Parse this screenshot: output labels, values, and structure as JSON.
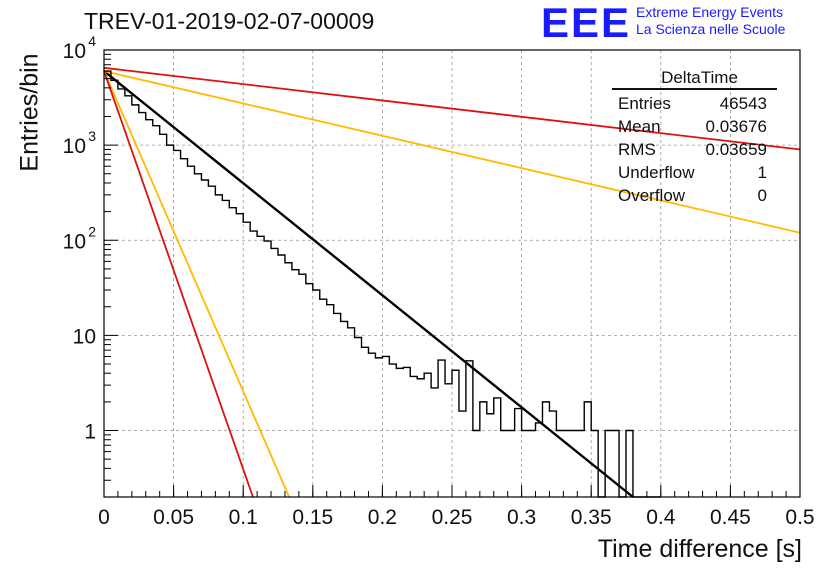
{
  "title": "TREV-01-2019-02-07-00009",
  "logo": {
    "letters": "EEE",
    "line1": "Extreme Energy Events",
    "line2": "La Scienza nelle Scuole",
    "color": "#1a1aff"
  },
  "stats": {
    "title": "DeltaTime",
    "rows": [
      {
        "label": "Entries",
        "value": "46543"
      },
      {
        "label": "Mean",
        "value": "0.03676"
      },
      {
        "label": "RMS",
        "value": "0.03659"
      },
      {
        "label": "Underflow",
        "value": "1"
      },
      {
        "label": "Overflow",
        "value": "0"
      }
    ]
  },
  "chart_data": {
    "type": "line",
    "title": "TREV-01-2019-02-07-00009",
    "xlabel": "Time difference [s]",
    "ylabel": "Entries/bin",
    "xlim": [
      0,
      0.5
    ],
    "ylim": [
      0.2,
      10000
    ],
    "yscale": "log",
    "grid": true,
    "x_ticks": [
      "0",
      "0.05",
      "0.1",
      "0.15",
      "0.2",
      "0.25",
      "0.3",
      "0.35",
      "0.4",
      "0.45",
      "0.5"
    ],
    "y_ticks": [
      {
        "value": 1,
        "label": "1"
      },
      {
        "value": 10,
        "label": "10"
      },
      {
        "value": 100,
        "label": "10",
        "exp": "2"
      },
      {
        "value": 1000,
        "label": "10",
        "exp": "3"
      },
      {
        "value": 10000,
        "label": "10",
        "exp": "4"
      }
    ],
    "histogram": {
      "color": "#000000",
      "bin_width": 0.005,
      "x": [
        0.0,
        0.005,
        0.01,
        0.015,
        0.02,
        0.025,
        0.03,
        0.035,
        0.04,
        0.045,
        0.05,
        0.055,
        0.06,
        0.065,
        0.07,
        0.075,
        0.08,
        0.085,
        0.09,
        0.095,
        0.1,
        0.105,
        0.11,
        0.115,
        0.12,
        0.125,
        0.13,
        0.135,
        0.14,
        0.145,
        0.15,
        0.155,
        0.16,
        0.165,
        0.17,
        0.175,
        0.18,
        0.185,
        0.19,
        0.195,
        0.2,
        0.205,
        0.21,
        0.215,
        0.22,
        0.225,
        0.23,
        0.235,
        0.24,
        0.245,
        0.25,
        0.255,
        0.26,
        0.265,
        0.27,
        0.275,
        0.28,
        0.285,
        0.29,
        0.295,
        0.3,
        0.305,
        0.31,
        0.315,
        0.32,
        0.325,
        0.33,
        0.335,
        0.34,
        0.345,
        0.35,
        0.355,
        0.36,
        0.365,
        0.37,
        0.375,
        0.38,
        0.385,
        0.39,
        0.395
      ],
      "counts": [
        6000,
        4800,
        3900,
        3300,
        2650,
        2200,
        1850,
        1600,
        1300,
        1000,
        880,
        720,
        600,
        500,
        430,
        370,
        300,
        262,
        220,
        190,
        155,
        125,
        110,
        98,
        82,
        70,
        58,
        49,
        44,
        35,
        30,
        24,
        21,
        17,
        14,
        12,
        9.5,
        7.5,
        6.5,
        5.8,
        6,
        5,
        4.5,
        4.6,
        3.7,
        3.5,
        4,
        2.8,
        5.5,
        3.1,
        4.3,
        1.6,
        5.4,
        1,
        2,
        1.5,
        2.2,
        1,
        1,
        1.7,
        1,
        1,
        1.2,
        2,
        1.6,
        1,
        1,
        1,
        1,
        2,
        1,
        0.2,
        1,
        1,
        0.2,
        1,
        0.2,
        0.2,
        0.2,
        0.2
      ]
    },
    "series": [
      {
        "color": "#000000",
        "x": [
          0,
          0.38
        ],
        "y": [
          6000,
          0.2
        ]
      },
      {
        "color": "#dd1111",
        "x": [
          0,
          0.5
        ],
        "y": [
          6500,
          900
        ]
      },
      {
        "color": "#ffbb00",
        "x": [
          0,
          0.5
        ],
        "y": [
          6000,
          120
        ]
      },
      {
        "color": "#ffbb00",
        "x": [
          0,
          0.133
        ],
        "y": [
          6000,
          0.2
        ]
      },
      {
        "color": "#dd1111",
        "x": [
          0,
          0.107
        ],
        "y": [
          6000,
          0.2
        ]
      }
    ]
  }
}
